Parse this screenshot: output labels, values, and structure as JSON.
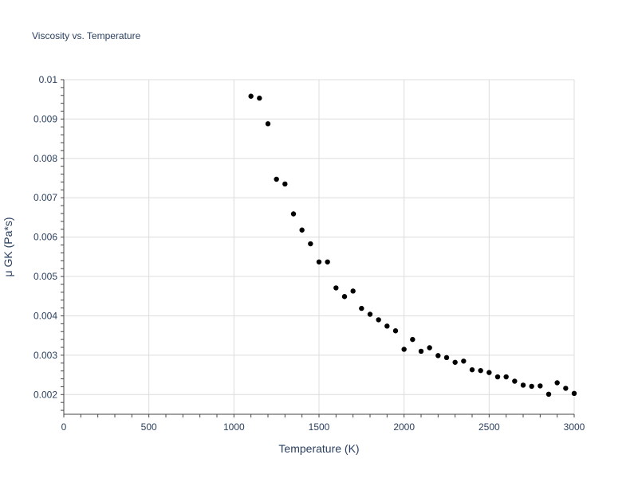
{
  "chart_data": {
    "type": "scatter",
    "title": "Viscosity vs. Temperature",
    "xlabel": "Temperature (K)",
    "ylabel": "μ GK (Pa*s)",
    "xlim": [
      0,
      3000
    ],
    "ylim": [
      0.0015,
      0.01
    ],
    "x_ticks": [
      0,
      500,
      1000,
      1500,
      2000,
      2500,
      3000
    ],
    "x_tick_labels": [
      "0",
      "500",
      "1000",
      "1500",
      "2000",
      "2500",
      "3000"
    ],
    "y_ticks": [
      0.002,
      0.003,
      0.004,
      0.005,
      0.006,
      0.007,
      0.008,
      0.009,
      0.01
    ],
    "y_tick_labels": [
      "0.002",
      "0.003",
      "0.004",
      "0.005",
      "0.006",
      "0.007",
      "0.008",
      "0.009",
      "0.01"
    ],
    "grid": true,
    "marker_color": "#000000",
    "series": [
      {
        "x": [
          1100,
          1150,
          1200,
          1250,
          1300,
          1350,
          1400,
          1450,
          1500,
          1550,
          1600,
          1650,
          1700,
          1750,
          1800,
          1850,
          1900,
          1950,
          2000,
          2050,
          2100,
          2150,
          2200,
          2250,
          2300,
          2350,
          2400,
          2450,
          2500,
          2550,
          2600,
          2650,
          2700,
          2750,
          2800,
          2850,
          2900,
          2950,
          3000
        ],
        "y": [
          0.00958,
          0.00953,
          0.00888,
          0.00747,
          0.00735,
          0.00659,
          0.00618,
          0.00583,
          0.00537,
          0.00537,
          0.00471,
          0.00449,
          0.00463,
          0.00419,
          0.00404,
          0.0039,
          0.00374,
          0.00362,
          0.00315,
          0.0034,
          0.0031,
          0.00319,
          0.00299,
          0.00294,
          0.00282,
          0.00285,
          0.00263,
          0.00261,
          0.00256,
          0.00245,
          0.00245,
          0.00234,
          0.00224,
          0.00221,
          0.00222,
          0.00201,
          0.0023,
          0.00216,
          0.00203
        ]
      }
    ]
  }
}
